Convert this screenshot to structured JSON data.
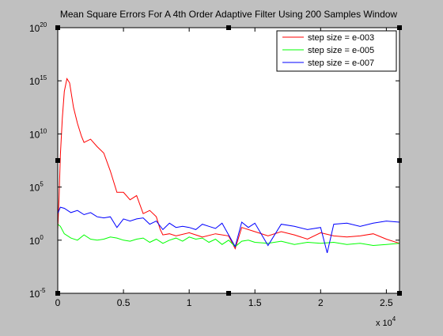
{
  "chart_data": {
    "type": "line",
    "title": "Mean Square Errors For A 4th Order Adaptive Filter Using 200 Samples Window",
    "xlabel": "",
    "ylabel": "",
    "x_multiplier_label": "x 10",
    "x_multiplier_exp": "4",
    "xlim": [
      0,
      2.6
    ],
    "ylim_log10": [
      -5,
      20
    ],
    "yscale": "log",
    "grid": false,
    "legend_position": "top-right",
    "x_ticks": [
      "0",
      "0.5",
      "1",
      "1.5",
      "2",
      "2.5"
    ],
    "x_tick_values": [
      0,
      0.5,
      1,
      1.5,
      2,
      2.5
    ],
    "y_ticks": [
      {
        "base": "10",
        "exp": "-5",
        "value": -5
      },
      {
        "base": "10",
        "exp": "0",
        "value": 0
      },
      {
        "base": "10",
        "exp": "5",
        "value": 5
      },
      {
        "base": "10",
        "exp": "10",
        "value": 10
      },
      {
        "base": "10",
        "exp": "15",
        "value": 15
      },
      {
        "base": "10",
        "exp": "20",
        "value": 20
      }
    ],
    "series": [
      {
        "name": "step size = e-003",
        "color": "#ff0000",
        "x": [
          0,
          0.01,
          0.02,
          0.035,
          0.05,
          0.07,
          0.09,
          0.12,
          0.15,
          0.18,
          0.2,
          0.25,
          0.3,
          0.35,
          0.4,
          0.45,
          0.5,
          0.55,
          0.6,
          0.65,
          0.7,
          0.75,
          0.78,
          0.8,
          0.85,
          0.9,
          1.0,
          1.1,
          1.2,
          1.3,
          1.35,
          1.4,
          1.5,
          1.6,
          1.7,
          1.8,
          1.9,
          2.0,
          2.1,
          2.2,
          2.3,
          2.4,
          2.5,
          2.6
        ],
        "log10_y": [
          1,
          4,
          8,
          11.5,
          14,
          15.2,
          14.8,
          12.5,
          11,
          9.8,
          9.2,
          9.5,
          8.8,
          8.2,
          6.5,
          4.5,
          4.5,
          3.8,
          4.2,
          2.5,
          2.8,
          2.2,
          1,
          0.5,
          0.6,
          0.4,
          0.7,
          0.3,
          0.6,
          0.4,
          -0.8,
          1.2,
          0.8,
          0.4,
          0.8,
          0.5,
          0.1,
          0.7,
          0.4,
          0.3,
          0.4,
          0.6,
          0.1,
          -0.3
        ]
      },
      {
        "name": "step size = e-005",
        "color": "#00ff00",
        "x": [
          0,
          0.02,
          0.05,
          0.1,
          0.15,
          0.2,
          0.25,
          0.3,
          0.35,
          0.4,
          0.45,
          0.5,
          0.55,
          0.6,
          0.65,
          0.7,
          0.75,
          0.8,
          0.85,
          0.9,
          0.95,
          1.0,
          1.05,
          1.1,
          1.15,
          1.2,
          1.25,
          1.3,
          1.35,
          1.4,
          1.45,
          1.5,
          1.6,
          1.7,
          1.8,
          1.9,
          2.0,
          2.1,
          2.2,
          2.3,
          2.4,
          2.5,
          2.6
        ],
        "log10_y": [
          1.5,
          1.3,
          0.6,
          0.2,
          0.0,
          0.5,
          0.1,
          0.0,
          0.1,
          0.3,
          0.2,
          0.0,
          -0.1,
          0.1,
          0.2,
          -0.2,
          0.1,
          -0.3,
          0.0,
          0.2,
          -0.1,
          0.3,
          0.1,
          0.2,
          -0.2,
          0.1,
          -0.4,
          0.0,
          -0.6,
          -0.1,
          0.0,
          -0.2,
          -0.3,
          -0.1,
          -0.4,
          -0.2,
          -0.3,
          -0.2,
          -0.4,
          -0.3,
          -0.5,
          -0.4,
          -0.3
        ]
      },
      {
        "name": "step size = e-007",
        "color": "#0000ff",
        "x": [
          0,
          0.02,
          0.05,
          0.1,
          0.15,
          0.2,
          0.25,
          0.3,
          0.35,
          0.4,
          0.45,
          0.5,
          0.55,
          0.6,
          0.65,
          0.7,
          0.75,
          0.8,
          0.85,
          0.9,
          0.95,
          1.0,
          1.05,
          1.1,
          1.15,
          1.2,
          1.25,
          1.3,
          1.35,
          1.4,
          1.45,
          1.5,
          1.6,
          1.7,
          1.8,
          1.9,
          2.0,
          2.05,
          2.1,
          2.2,
          2.3,
          2.4,
          2.5,
          2.6
        ],
        "log10_y": [
          2.5,
          3.1,
          3.0,
          2.6,
          2.8,
          2.4,
          2.6,
          2.2,
          2.1,
          2.2,
          1.2,
          2.0,
          1.8,
          2.0,
          2.1,
          1.5,
          1.8,
          1.0,
          1.6,
          1.2,
          1.3,
          1.2,
          1.0,
          1.5,
          1.3,
          1.1,
          1.6,
          0.5,
          -0.6,
          1.7,
          1.2,
          1.6,
          -0.5,
          1.5,
          1.3,
          1.0,
          1.2,
          -1.2,
          1.5,
          1.6,
          1.3,
          1.6,
          1.8,
          1.7
        ]
      }
    ]
  }
}
